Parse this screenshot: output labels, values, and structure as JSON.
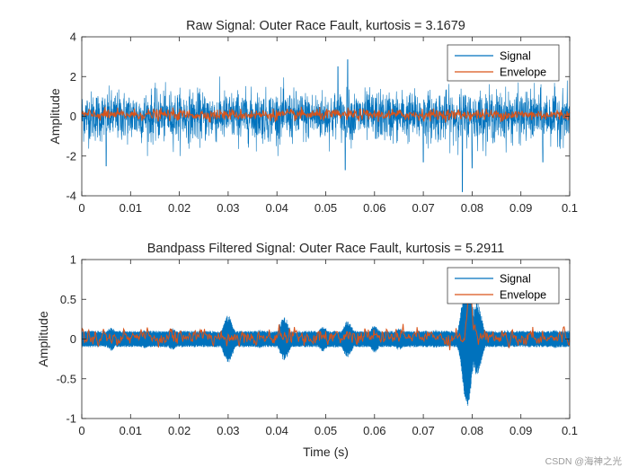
{
  "colors": {
    "signal": "#0072BD",
    "envelope": "#D95319",
    "axis": "#262626"
  },
  "watermark": "CSDN @海神之光",
  "chart_data": [
    {
      "type": "line",
      "title": "Raw Signal: Outer Race Fault, kurtosis = 3.1679",
      "xlabel": "",
      "ylabel": "Amplitude",
      "xlim": [
        0,
        0.1
      ],
      "ylim": [
        -4,
        4
      ],
      "xticks": [
        "0",
        "0.01",
        "0.02",
        "0.03",
        "0.04",
        "0.05",
        "0.06",
        "0.07",
        "0.08",
        "0.09",
        "0.1"
      ],
      "yticks": [
        "-4",
        "-2",
        "0",
        "2",
        "4"
      ],
      "legend": {
        "position": "top-right",
        "entries": [
          "Signal",
          "Envelope"
        ]
      },
      "series": [
        {
          "name": "Signal",
          "description_values": {
            "typical_range": [
              -1.8,
              1.8
            ],
            "peaks": [
              {
                "x": 0.0545,
                "y": 2.85
              },
              {
                "x": 0.054,
                "y": -2.7
              },
              {
                "x": 0.078,
                "y": -3.8
              },
              {
                "x": 0.08,
                "y": -2.6
              },
              {
                "x": 0.0525,
                "y": 2.5
              },
              {
                "x": 0.005,
                "y": -2.5
              },
              {
                "x": 0.07,
                "y": -2.3
              },
              {
                "x": 0.0945,
                "y": -2.3
              }
            ]
          }
        },
        {
          "name": "Envelope",
          "description_values": {
            "typical_range": [
              -0.3,
              0.45
            ]
          }
        }
      ]
    },
    {
      "type": "line",
      "title": "Bandpass Filtered Signal: Outer Race Fault, kurtosis = 5.2911",
      "xlabel": "Time (s)",
      "ylabel": "Amplitude",
      "xlim": [
        0,
        0.1
      ],
      "ylim": [
        -1,
        1
      ],
      "xticks": [
        "0",
        "0.01",
        "0.02",
        "0.03",
        "0.04",
        "0.05",
        "0.06",
        "0.07",
        "0.08",
        "0.09",
        "0.1"
      ],
      "yticks": [
        "-1",
        "-0.5",
        "0",
        "0.5",
        "1"
      ],
      "legend": {
        "position": "top-right",
        "entries": [
          "Signal",
          "Envelope"
        ]
      },
      "series": [
        {
          "name": "Signal",
          "bursts": [
            {
              "x": 0.006,
              "a": 0.13
            },
            {
              "x": 0.013,
              "a": 0.1
            },
            {
              "x": 0.0185,
              "a": 0.12
            },
            {
              "x": 0.0225,
              "a": 0.08
            },
            {
              "x": 0.03,
              "a": 0.26
            },
            {
              "x": 0.0365,
              "a": 0.1
            },
            {
              "x": 0.0415,
              "a": 0.24
            },
            {
              "x": 0.0495,
              "a": 0.14
            },
            {
              "x": 0.0545,
              "a": 0.2
            },
            {
              "x": 0.06,
              "a": 0.15
            },
            {
              "x": 0.065,
              "a": 0.12
            },
            {
              "x": 0.0725,
              "a": 0.1
            },
            {
              "x": 0.079,
              "a": 0.75
            },
            {
              "x": 0.081,
              "a": 0.4
            },
            {
              "x": 0.087,
              "a": 0.1
            },
            {
              "x": 0.092,
              "a": 0.08
            },
            {
              "x": 0.097,
              "a": 0.1
            }
          ],
          "base_amplitude": 0.09
        },
        {
          "name": "Envelope",
          "description_values": {
            "typical_range": [
              -0.12,
              0.18
            ],
            "peak": {
              "x": 0.0795,
              "y": 0.72
            }
          }
        }
      ]
    }
  ]
}
